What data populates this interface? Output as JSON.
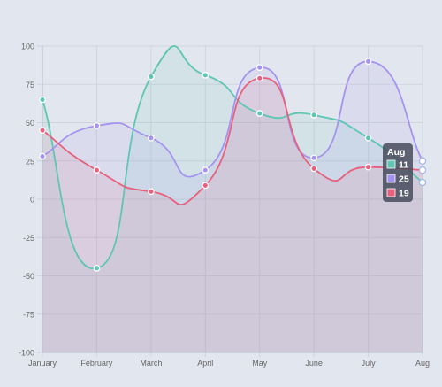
{
  "chart_data": {
    "type": "line",
    "title": "",
    "xlabel": "",
    "ylabel": "",
    "categories": [
      "January",
      "February",
      "March",
      "April",
      "May",
      "June",
      "July",
      "Aug"
    ],
    "ylim": [
      -100,
      100
    ],
    "yticks": [
      -100,
      -75,
      -50,
      -25,
      0,
      25,
      50,
      75,
      100
    ],
    "grid": true,
    "legend": "none",
    "series": [
      {
        "color": "#5fc6b4",
        "values": [
          65,
          -45,
          80,
          81,
          56,
          55,
          40,
          11
        ]
      },
      {
        "color": "#a593ef",
        "values": [
          28,
          48,
          40,
          19,
          86,
          27,
          90,
          25
        ]
      },
      {
        "color": "#e8607b",
        "values": [
          45,
          19,
          5,
          9,
          79,
          20,
          21,
          19
        ]
      }
    ],
    "tooltip": {
      "title": "Aug",
      "items": [
        "11",
        "25",
        "19"
      ]
    }
  }
}
